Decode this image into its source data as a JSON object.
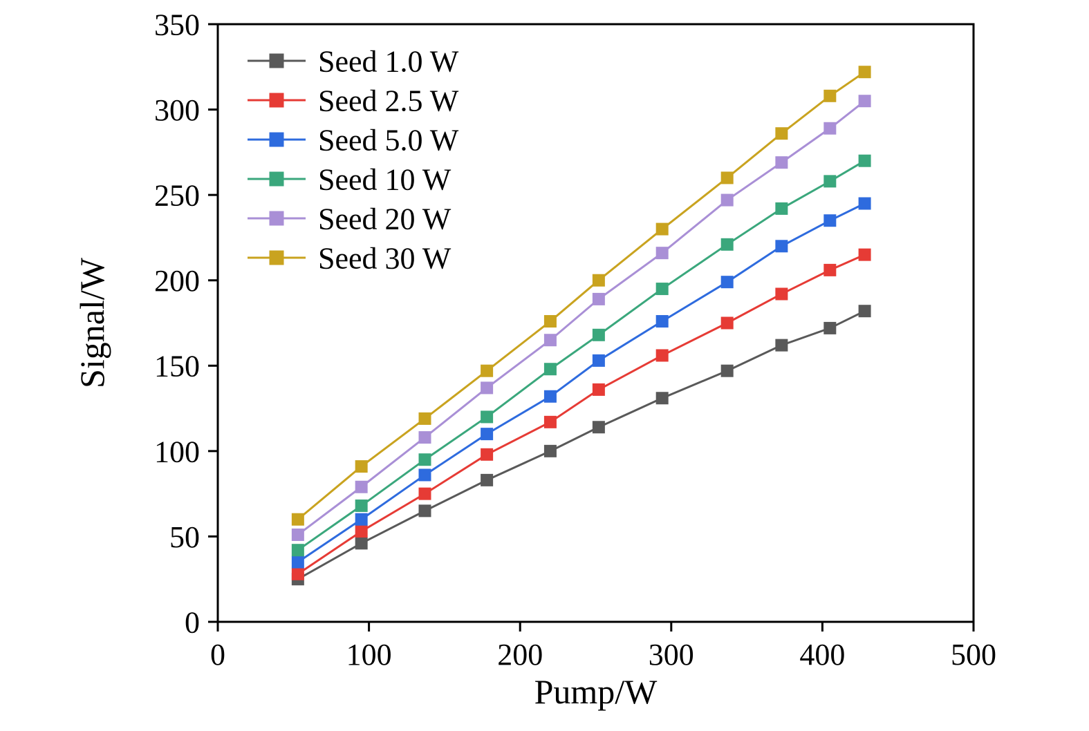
{
  "chart_data": {
    "type": "line",
    "title": "",
    "xlabel": "Pump/W",
    "ylabel": "Signal/W",
    "xlim": [
      0,
      500
    ],
    "ylim": [
      0,
      350
    ],
    "xticks": [
      0,
      100,
      200,
      300,
      400,
      500
    ],
    "yticks": [
      0,
      50,
      100,
      150,
      200,
      250,
      300,
      350
    ],
    "grid": false,
    "legend_position": "top-left",
    "marker": "square",
    "x": [
      53,
      95,
      137,
      178,
      220,
      252,
      294,
      337,
      373,
      405,
      428
    ],
    "series": [
      {
        "name": "Seed 1.0 W",
        "color": "#595959",
        "values": [
          25,
          46,
          65,
          83,
          100,
          114,
          131,
          147,
          162,
          172,
          182
        ]
      },
      {
        "name": "Seed 2.5 W",
        "color": "#e63b35",
        "values": [
          28,
          53,
          75,
          98,
          117,
          136,
          156,
          175,
          192,
          206,
          215
        ]
      },
      {
        "name": "Seed 5.0 W",
        "color": "#2e6bde",
        "values": [
          35,
          60,
          86,
          110,
          132,
          153,
          176,
          199,
          220,
          235,
          245
        ]
      },
      {
        "name": "Seed 10 W",
        "color": "#3aa77c",
        "values": [
          42,
          68,
          95,
          120,
          148,
          168,
          195,
          221,
          242,
          258,
          270
        ]
      },
      {
        "name": "Seed 20 W",
        "color": "#a98fd6",
        "values": [
          51,
          79,
          108,
          137,
          165,
          189,
          216,
          247,
          269,
          289,
          305
        ]
      },
      {
        "name": "Seed 30 W",
        "color": "#c9a31f",
        "values": [
          60,
          91,
          119,
          147,
          176,
          200,
          230,
          260,
          286,
          308,
          322
        ]
      }
    ]
  }
}
